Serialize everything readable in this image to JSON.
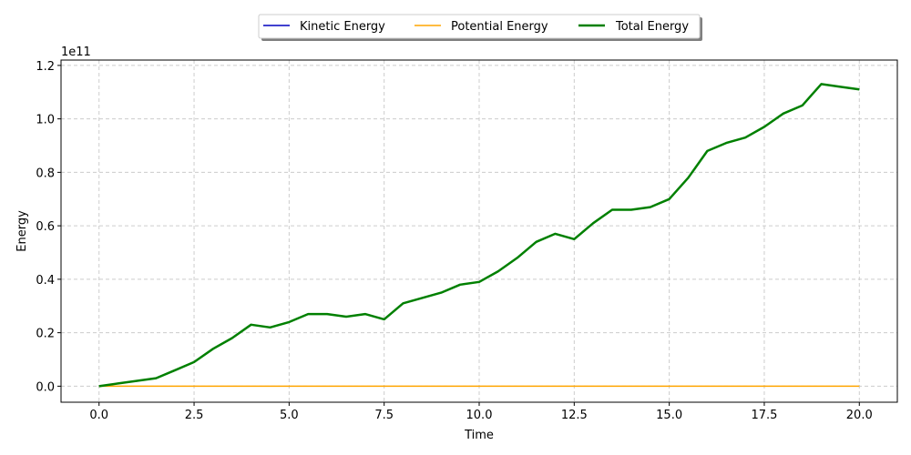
{
  "chart_data": {
    "type": "line",
    "xlabel": "Time",
    "ylabel": "Energy",
    "offset_text": "1e11",
    "xlim": [
      -1.0,
      21.0
    ],
    "ylim": [
      -0.06,
      1.22
    ],
    "x_ticks": [
      0.0,
      2.5,
      5.0,
      7.5,
      10.0,
      12.5,
      15.0,
      17.5,
      20.0
    ],
    "x_tick_labels": [
      "0.0",
      "2.5",
      "5.0",
      "7.5",
      "10.0",
      "12.5",
      "15.0",
      "17.5",
      "20.0"
    ],
    "y_ticks": [
      0.0,
      0.2,
      0.4,
      0.6,
      0.8,
      1.0,
      1.2
    ],
    "y_tick_labels": [
      "0.0",
      "0.2",
      "0.4",
      "0.6",
      "0.8",
      "1.0",
      "1.2"
    ],
    "grid": true,
    "legend_position": "top-center, outside plot",
    "x": [
      0.0,
      0.5,
      1.0,
      1.5,
      2.0,
      2.5,
      3.0,
      3.5,
      4.0,
      4.5,
      5.0,
      5.5,
      6.0,
      6.5,
      7.0,
      7.5,
      8.0,
      8.5,
      9.0,
      9.5,
      10.0,
      10.5,
      11.0,
      11.5,
      12.0,
      12.5,
      13.0,
      13.5,
      14.0,
      14.5,
      15.0,
      15.5,
      16.0,
      16.5,
      17.0,
      17.5,
      18.0,
      18.5,
      19.0,
      19.5,
      20.0
    ],
    "series": [
      {
        "name": "Kinetic Energy",
        "color": "#0000bf",
        "values": [
          0.0,
          0.01,
          0.02,
          0.03,
          0.06,
          0.09,
          0.14,
          0.18,
          0.23,
          0.22,
          0.24,
          0.27,
          0.27,
          0.26,
          0.27,
          0.25,
          0.31,
          0.33,
          0.35,
          0.38,
          0.39,
          0.43,
          0.48,
          0.54,
          0.57,
          0.55,
          0.61,
          0.66,
          0.66,
          0.67,
          0.7,
          0.78,
          0.88,
          0.91,
          0.93,
          0.97,
          1.02,
          1.05,
          1.13,
          1.12,
          1.11
        ]
      },
      {
        "name": "Potential Energy",
        "color": "#ffa500",
        "values": [
          0.0,
          0.0,
          0.0,
          0.0,
          0.0,
          0.0,
          0.0,
          0.0,
          0.0,
          0.0,
          0.0,
          0.0,
          0.0,
          0.0,
          0.0,
          0.0,
          0.0,
          0.0,
          0.0,
          0.0,
          0.0,
          0.0,
          0.0,
          0.0,
          0.0,
          0.0,
          0.0,
          0.0,
          0.0,
          0.0,
          0.0,
          0.0,
          0.0,
          0.0,
          0.0,
          0.0,
          0.0,
          0.0,
          0.0,
          0.0,
          0.0
        ]
      },
      {
        "name": "Total Energy",
        "color": "#008000",
        "values": [
          0.0,
          0.01,
          0.02,
          0.03,
          0.06,
          0.09,
          0.14,
          0.18,
          0.23,
          0.22,
          0.24,
          0.27,
          0.27,
          0.26,
          0.27,
          0.25,
          0.31,
          0.33,
          0.35,
          0.38,
          0.39,
          0.43,
          0.48,
          0.54,
          0.57,
          0.55,
          0.61,
          0.66,
          0.66,
          0.67,
          0.7,
          0.78,
          0.88,
          0.91,
          0.93,
          0.97,
          1.02,
          1.05,
          1.13,
          1.12,
          1.11
        ]
      }
    ]
  }
}
